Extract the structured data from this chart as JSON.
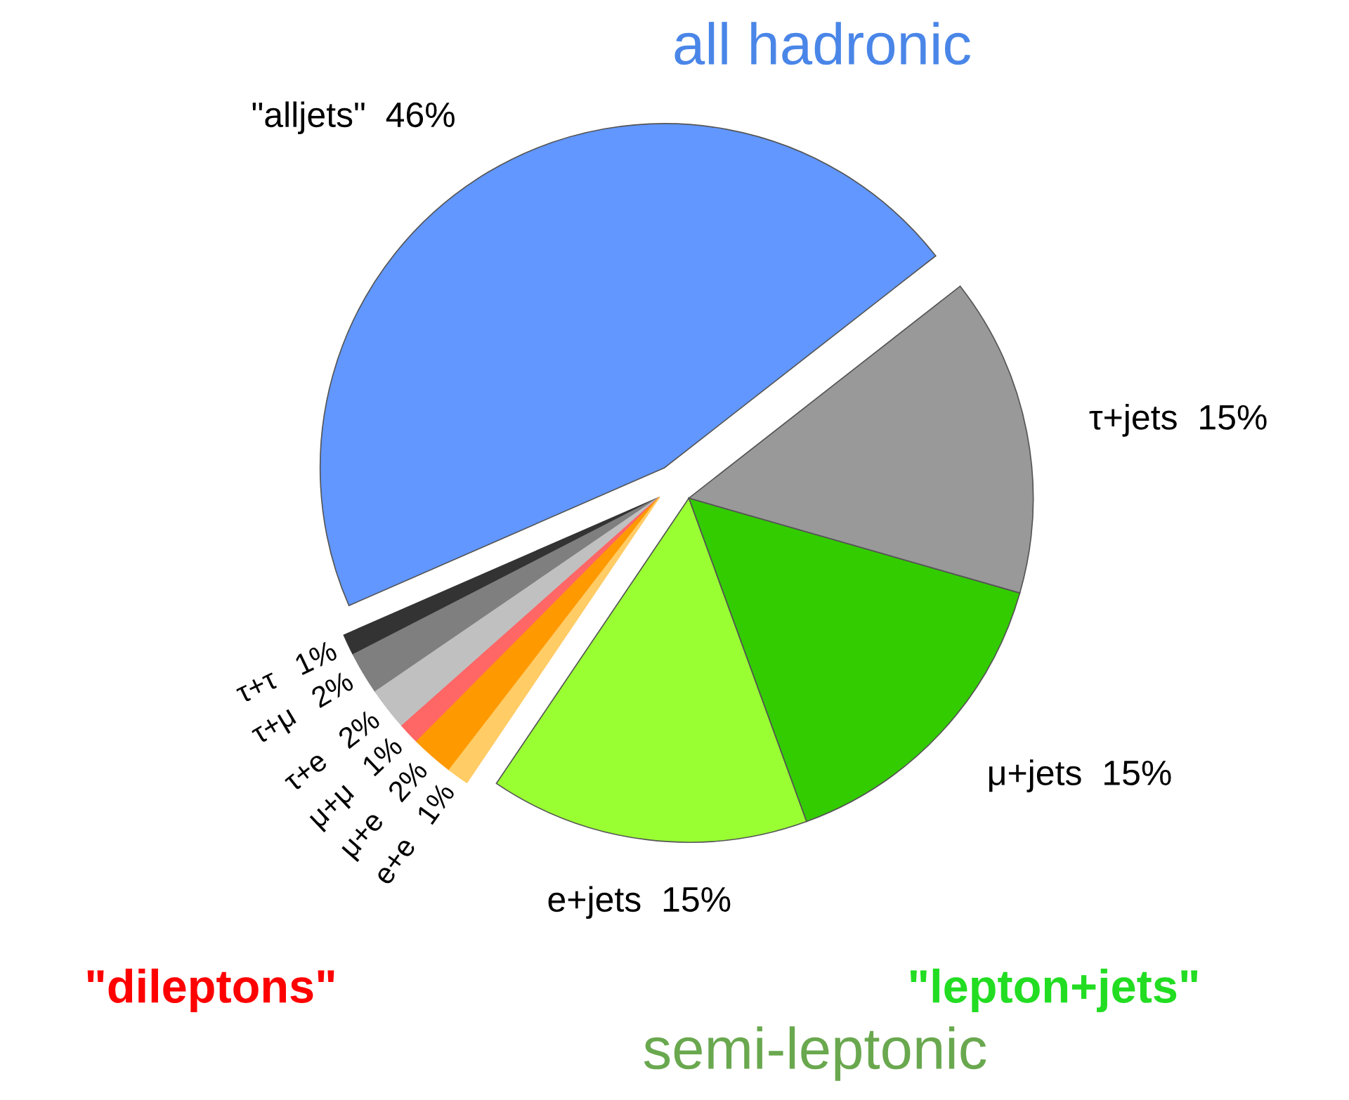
{
  "chart_data": {
    "type": "pie",
    "categories": [
      "\"alljets\"",
      "τ+τ",
      "τ+μ",
      "τ+e",
      "μ+μ",
      "μ+e",
      "e+e",
      "e+jets",
      "μ+jets",
      "τ+jets"
    ],
    "values": [
      46,
      1,
      2,
      2,
      1,
      2,
      1,
      15,
      15,
      15
    ],
    "value_labels": [
      "46%",
      "1%",
      "2%",
      "2%",
      "1%",
      "2%",
      "1%",
      "15%",
      "15%",
      "15%"
    ],
    "colors": [
      "#6197ff",
      "#333333",
      "#7f7f7f",
      "#c0c0c0",
      "#ff6666",
      "#ff9900",
      "#ffcc66",
      "#99ff33",
      "#33cc00",
      "#999999"
    ],
    "annotations": [
      "all hadronic",
      "\"dileptons\"",
      "\"lepton+jets\"",
      "semi-leptonic"
    ]
  }
}
